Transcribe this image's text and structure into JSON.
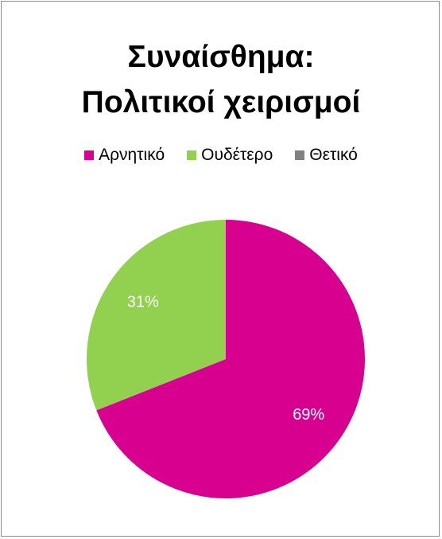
{
  "chart_data": {
    "type": "pie",
    "title_lines": [
      "Συναίσθημα:",
      "Πολιτικοί χειρισμοί"
    ],
    "categories": [
      "Αρνητικό",
      "Ουδέτερο",
      "Θετικό"
    ],
    "values": [
      69,
      31,
      0
    ],
    "data_labels": [
      "69%",
      "31%",
      ""
    ],
    "colors": [
      "#d8008f",
      "#92d050",
      "#808080"
    ],
    "legend_position": "top"
  }
}
